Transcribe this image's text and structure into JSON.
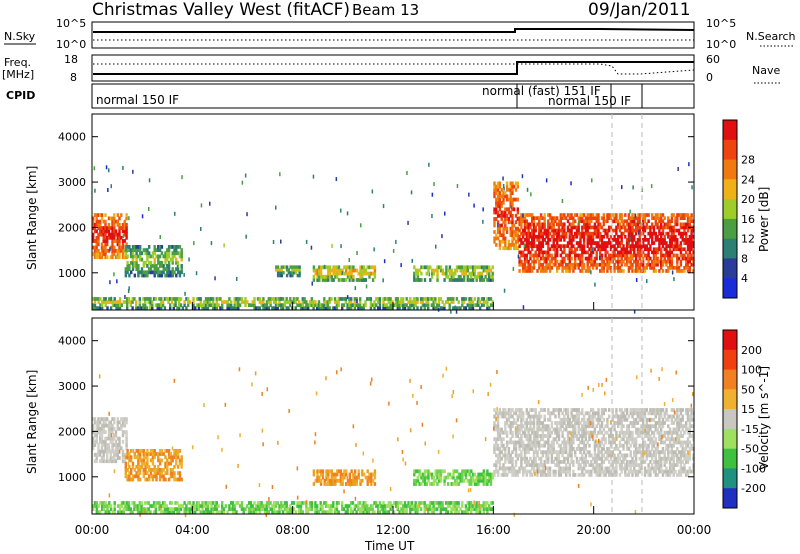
{
  "header": {
    "title": "Christmas Valley West (fitACF)",
    "beam": "Beam 13",
    "date": "09/Jan/2011"
  },
  "top_panels": {
    "nsky_label": "N.Sky",
    "nsky_ticks": [
      "10^5",
      "10^0"
    ],
    "nsearch_label": "N.Search",
    "nsearch_ticks": [
      "10^5",
      "10^0"
    ],
    "freq_label": "Freq.",
    "freq_unit": "[MHz]",
    "freq_ticks": [
      "18",
      "8"
    ],
    "nave_label": "Nave",
    "nave_ticks": [
      "60",
      "0"
    ],
    "cpid_label": "CPID",
    "cpid_modes": [
      "normal 150 IF",
      "normal (fast) 151 IF",
      "normal 150 IF"
    ]
  },
  "x_axis": {
    "label": "Time UT",
    "ticks": [
      "00:00",
      "04:00",
      "08:00",
      "12:00",
      "16:00",
      "20:00",
      "00:00"
    ]
  },
  "chart_data": [
    {
      "type": "heatmap",
      "name": "power",
      "xlabel": "Time UT",
      "ylabel": "Slant Range [km]",
      "xlim": [
        0,
        24
      ],
      "ylim": [
        180,
        4500
      ],
      "yticks": [
        "1000",
        "2000",
        "3000",
        "4000"
      ],
      "colorbar": {
        "label": "Power [dB]",
        "ticks": [
          "4",
          "8",
          "12",
          "16",
          "20",
          "24",
          "28"
        ],
        "colors": [
          "#1a2bd8",
          "#2a3c9a",
          "#2e7f73",
          "#4c9e42",
          "#9ecd2a",
          "#f0b018",
          "#f07a10",
          "#ee4410",
          "#e01010"
        ]
      },
      "regions": [
        {
          "t": [
            0.0,
            1.4
          ],
          "r": [
            1300,
            2300
          ],
          "level": 0.85
        },
        {
          "t": [
            1.3,
            3.6
          ],
          "r": [
            900,
            1600
          ],
          "level": 0.25
        },
        {
          "t": [
            7.3,
            8.3
          ],
          "r": [
            900,
            1150
          ],
          "level": 0.25
        },
        {
          "t": [
            8.8,
            11.3
          ],
          "r": [
            800,
            1150
          ],
          "level": 0.45
        },
        {
          "t": [
            12.8,
            16.0
          ],
          "r": [
            800,
            1150
          ],
          "level": 0.35
        },
        {
          "t": [
            16.0,
            17.0
          ],
          "r": [
            1500,
            3000
          ],
          "level": 0.8
        },
        {
          "t": [
            17.0,
            24.0
          ],
          "r": [
            1000,
            2300
          ],
          "level": 0.95
        },
        {
          "t": [
            0.0,
            16.0
          ],
          "r": [
            180,
            450
          ],
          "level": 0.3
        }
      ]
    },
    {
      "type": "heatmap",
      "name": "velocity",
      "xlabel": "Time UT",
      "ylabel": "Slant Range [km]",
      "xlim": [
        0,
        24
      ],
      "ylim": [
        180,
        4500
      ],
      "yticks": [
        "1000",
        "2000",
        "3000",
        "4000"
      ],
      "colorbar": {
        "label": "Velocity [m s^-1]",
        "ticks": [
          "200",
          "100",
          "50",
          "15",
          "-15",
          "-50",
          "-100",
          "-200"
        ],
        "colors": [
          "#2030c0",
          "#209080",
          "#40c040",
          "#a0e060",
          "#c8c8c0",
          "#f0b030",
          "#f08020",
          "#f04010",
          "#e01010"
        ]
      },
      "regions": [
        {
          "t": [
            0.0,
            1.4
          ],
          "r": [
            1300,
            2300
          ],
          "level": "ground"
        },
        {
          "t": [
            1.3,
            3.6
          ],
          "r": [
            900,
            1600
          ],
          "level": "away"
        },
        {
          "t": [
            8.8,
            11.3
          ],
          "r": [
            800,
            1150
          ],
          "level": "away"
        },
        {
          "t": [
            12.8,
            16.0
          ],
          "r": [
            800,
            1150
          ],
          "level": "toward"
        },
        {
          "t": [
            16.0,
            24.0
          ],
          "r": [
            1000,
            2500
          ],
          "level": "ground"
        },
        {
          "t": [
            0.0,
            16.0
          ],
          "r": [
            180,
            450
          ],
          "level": "toward"
        }
      ]
    }
  ]
}
